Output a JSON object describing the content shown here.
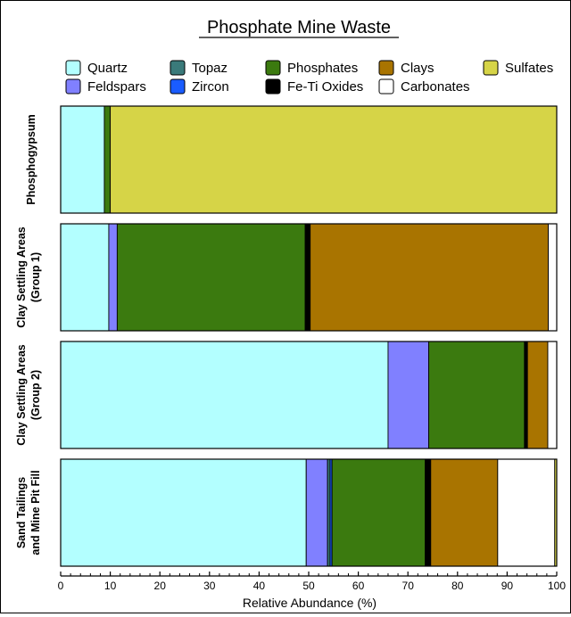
{
  "chart_data": {
    "type": "bar",
    "orientation": "horizontal",
    "stacked": true,
    "title": "Phosphate Mine Waste",
    "xlabel": "Relative Abundance (%)",
    "ylabel": "",
    "xlim": [
      0,
      100
    ],
    "x_ticks": [
      0,
      10,
      20,
      30,
      40,
      50,
      60,
      70,
      80,
      90,
      100
    ],
    "legend_position": "top",
    "grid": false,
    "categories": [
      [
        "Phosphogypsum"
      ],
      [
        "Clay Settling Areas",
        "(Group 1)"
      ],
      [
        "Clay Settling Areas",
        "(Group 2)"
      ],
      [
        "Sand Tailings",
        "and Mine Pit Fill"
      ]
    ],
    "series": [
      {
        "name": "Quartz",
        "color": "#b3ffff",
        "values": [
          8.8,
          9.7,
          66.0,
          49.5
        ]
      },
      {
        "name": "Feldspars",
        "color": "#8080ff",
        "values": [
          0,
          1.7,
          8.2,
          4.3
        ]
      },
      {
        "name": "Topaz",
        "color": "#3a7a7a",
        "values": [
          0,
          0,
          0,
          0.5
        ]
      },
      {
        "name": "Zircon",
        "color": "#1a5cff",
        "values": [
          0,
          0,
          0,
          0.4
        ]
      },
      {
        "name": "Phosphates",
        "color": "#3b7a0f",
        "values": [
          1.2,
          37.9,
          19.3,
          18.8
        ]
      },
      {
        "name": "Fe-Ti Oxides",
        "color": "#000000",
        "values": [
          0,
          1.0,
          0.6,
          1.1
        ]
      },
      {
        "name": "Clays",
        "color": "#a97400",
        "values": [
          0,
          48.0,
          4.1,
          13.5
        ]
      },
      {
        "name": "Carbonates",
        "color": "#ffffff",
        "values": [
          0,
          1.7,
          1.8,
          11.5
        ]
      },
      {
        "name": "Sulfates",
        "color": "#d6d447",
        "values": [
          90.0,
          0,
          0,
          0.4
        ]
      }
    ]
  }
}
